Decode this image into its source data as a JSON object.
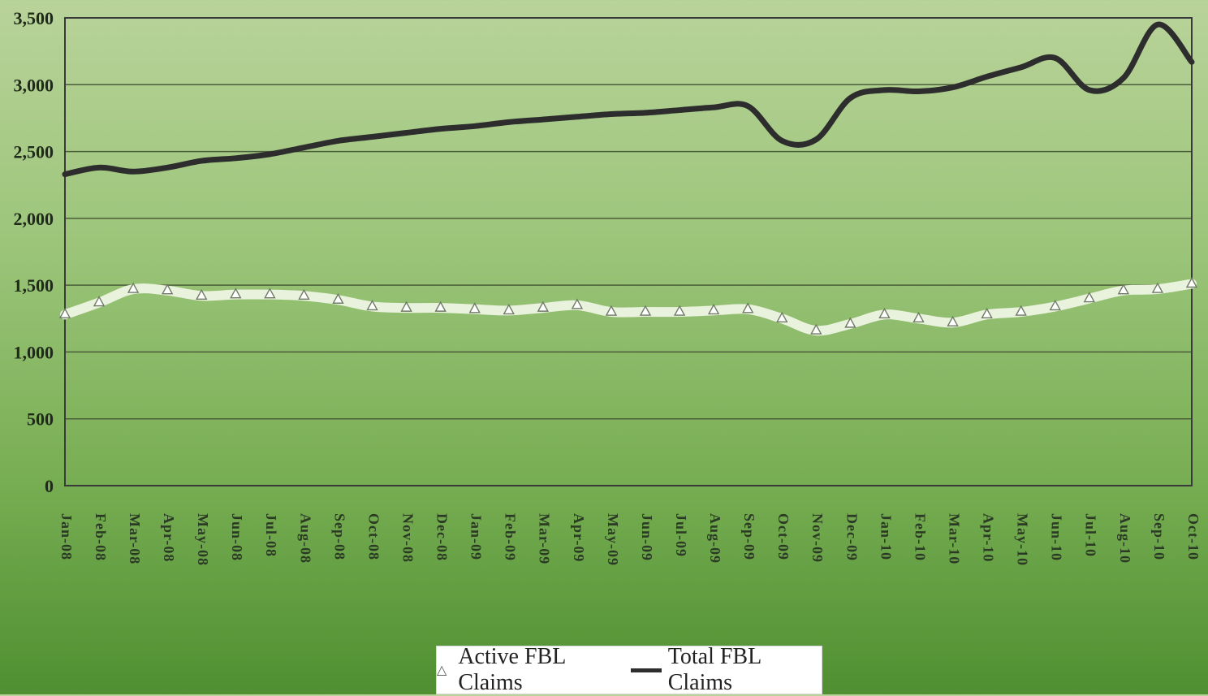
{
  "chart_data": {
    "type": "line",
    "title": "",
    "xlabel": "",
    "ylabel": "",
    "ylim": [
      0,
      3500
    ],
    "yticks": [
      "0",
      "500",
      "1,000",
      "1,500",
      "2,000",
      "2,500",
      "3,000",
      "3,500"
    ],
    "grid": "horizontal",
    "legend_position": "bottom",
    "categories": [
      "Jan-08",
      "Feb-08",
      "Mar-08",
      "Apr-08",
      "May-08",
      "Jun-08",
      "Jul-08",
      "Aug-08",
      "Sep-08",
      "Oct-08",
      "Nov-08",
      "Dec-08",
      "Jan-09",
      "Feb-09",
      "Mar-09",
      "Apr-09",
      "May-09",
      "Jun-09",
      "Jul-09",
      "Aug-09",
      "Sep-09",
      "Oct-09",
      "Nov-09",
      "Dec-09",
      "Jan-10",
      "Feb-10",
      "Mar-10",
      "Apr-10",
      "May-10",
      "Jun-10",
      "Jul-10",
      "Aug-10",
      "Sep-10",
      "Oct-10"
    ],
    "series": [
      {
        "name": "Active FBL Claims",
        "color": "#ffffff",
        "marker": "triangle",
        "values": [
          1280,
          1370,
          1470,
          1460,
          1420,
          1430,
          1430,
          1420,
          1390,
          1340,
          1330,
          1330,
          1320,
          1310,
          1330,
          1350,
          1300,
          1300,
          1300,
          1310,
          1320,
          1250,
          1160,
          1210,
          1280,
          1250,
          1220,
          1280,
          1300,
          1340,
          1400,
          1460,
          1470,
          1510
        ]
      },
      {
        "name": "Total FBL Claims",
        "color": "#2d2d2d",
        "marker": "none",
        "values": [
          2330,
          2380,
          2350,
          2380,
          2430,
          2450,
          2480,
          2530,
          2580,
          2610,
          2640,
          2670,
          2690,
          2720,
          2740,
          2760,
          2780,
          2790,
          2810,
          2830,
          2840,
          2580,
          2590,
          2900,
          2960,
          2950,
          2980,
          3060,
          3130,
          3200,
          2960,
          3050,
          3450,
          3170
        ]
      }
    ]
  },
  "legend": {
    "active_label": "Active FBL Claims",
    "total_label": "Total FBL Claims",
    "active_marker": "△"
  }
}
